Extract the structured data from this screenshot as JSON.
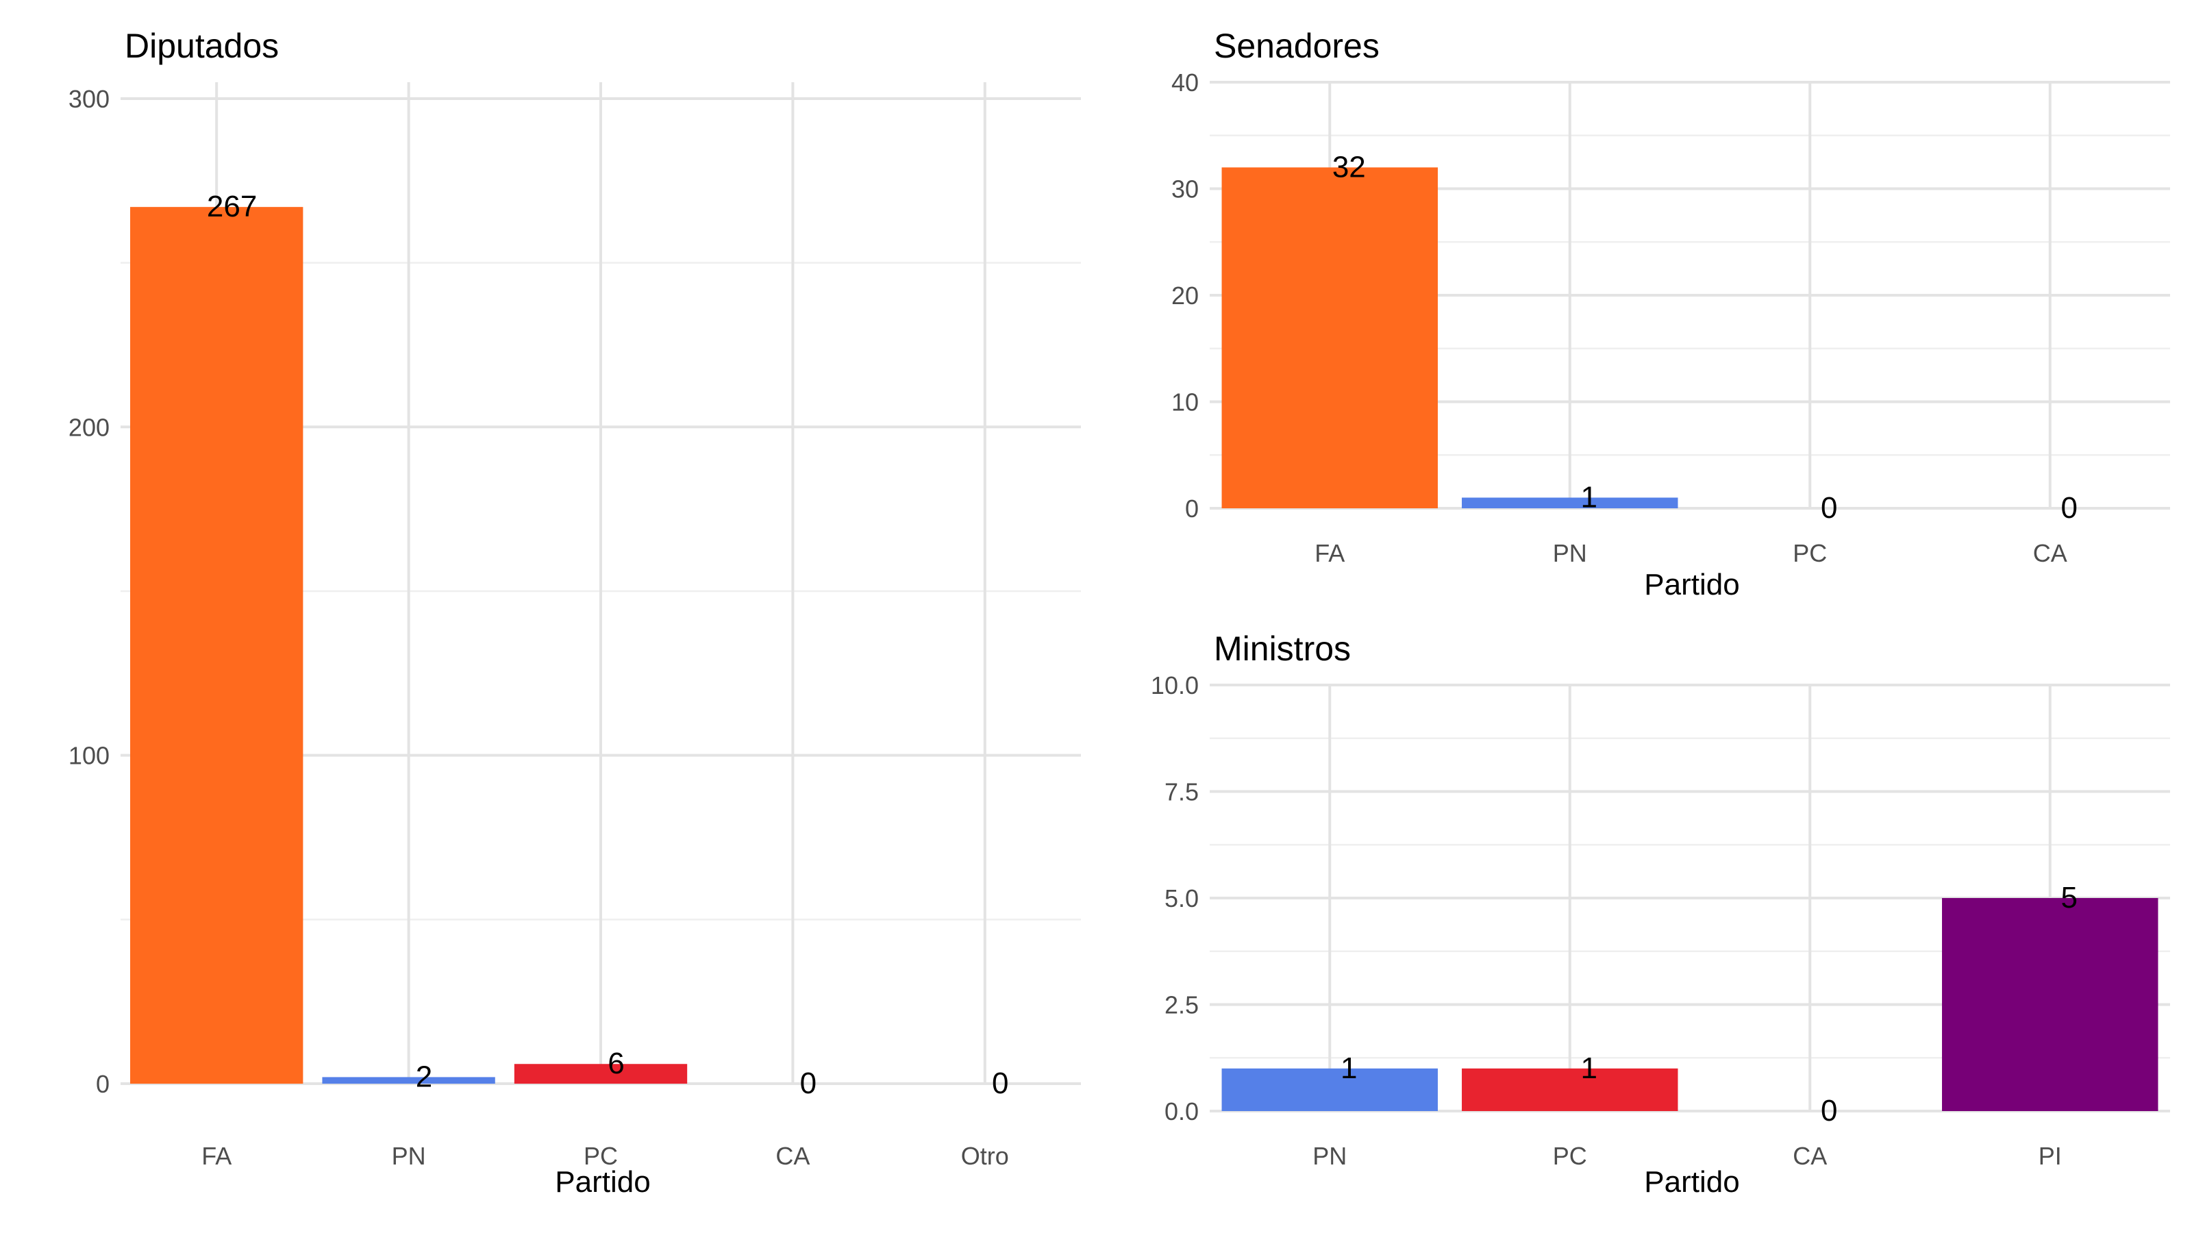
{
  "chart_data": [
    {
      "type": "bar",
      "title": "Diputados",
      "xlabel": "Partido",
      "ylabel": "",
      "categories": [
        "FA",
        "PN",
        "PC",
        "CA",
        "Otro"
      ],
      "values": [
        267,
        2,
        6,
        0,
        0
      ],
      "colors": [
        "#FF6A1E",
        "#5580E8",
        "#E8232F",
        "#E8232F",
        "#E8232F"
      ],
      "ylim": [
        0,
        305
      ],
      "yticks": [
        0,
        100,
        200,
        300
      ],
      "ytick_labels": [
        "0",
        "100",
        "200",
        "300"
      ],
      "grid": true
    },
    {
      "type": "bar",
      "title": "Senadores",
      "xlabel": "Partido",
      "ylabel": "",
      "categories": [
        "FA",
        "PN",
        "PC",
        "CA"
      ],
      "values": [
        32,
        1,
        0,
        0
      ],
      "colors": [
        "#FF6A1E",
        "#5580E8",
        "#E8232F",
        "#E8232F"
      ],
      "ylim": [
        0,
        40
      ],
      "yticks": [
        0,
        10,
        20,
        30,
        40
      ],
      "ytick_labels": [
        "0",
        "10",
        "20",
        "30",
        "40"
      ],
      "grid": true
    },
    {
      "type": "bar",
      "title": "Ministros",
      "xlabel": "Partido",
      "ylabel": "",
      "categories": [
        "PN",
        "PC",
        "CA",
        "PI"
      ],
      "values": [
        1,
        1,
        0,
        5
      ],
      "colors": [
        "#5580E8",
        "#E8232F",
        "#E8232F",
        "#770077"
      ],
      "ylim": [
        0,
        10
      ],
      "yticks": [
        0,
        2.5,
        5,
        7.5,
        10
      ],
      "ytick_labels": [
        "0.0",
        "2.5",
        "5.0",
        "7.5",
        "10.0"
      ],
      "grid": true
    }
  ]
}
